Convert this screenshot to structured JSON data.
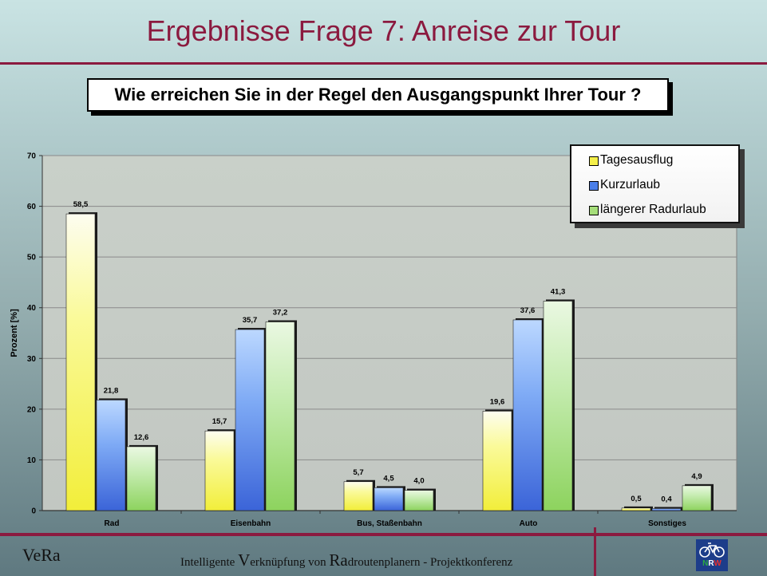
{
  "slide": {
    "title": "Ergebnisse Frage 7: Anreise zur Tour",
    "question": "Wie erreichen Sie in der Regel den Ausgangspunkt Ihrer Tour ?"
  },
  "footer": {
    "left": "VeRa",
    "center_parts": [
      "Intelligente ",
      "V",
      "erknüpfung von ",
      "Ra",
      "droutenplanern - Projektkonferenz"
    ],
    "logo_letters": [
      "N",
      "R",
      "W"
    ]
  },
  "colors": {
    "title": "#8b1a3f",
    "rule": "#8b1a3f",
    "series": [
      "#f5f04a",
      "#4a7ee8",
      "#a6de7a"
    ]
  },
  "chart_data": {
    "type": "bar",
    "title": "",
    "xlabel": "",
    "ylabel": "Prozent [%]",
    "ylim": [
      0,
      70
    ],
    "yticks": [
      0,
      10,
      20,
      30,
      40,
      50,
      60,
      70
    ],
    "grid": true,
    "legend_position": "top-right",
    "categories": [
      "Rad",
      "Eisenbahn",
      "Bus, Staßenbahn",
      "Auto",
      "Sonstiges"
    ],
    "series": [
      {
        "name": "Tagesausflug",
        "values": [
          58.5,
          15.7,
          5.7,
          19.6,
          0.5
        ],
        "labels": [
          "58,5",
          "15,7",
          "5,7",
          "19,6",
          "0,5"
        ]
      },
      {
        "name": "Kurzurlaub",
        "values": [
          21.8,
          35.7,
          4.5,
          37.6,
          0.4
        ],
        "labels": [
          "21,8",
          "35,7",
          "4,5",
          "37,6",
          "0,4"
        ]
      },
      {
        "name": "längerer Radurlaub",
        "values": [
          12.6,
          37.2,
          4.0,
          41.3,
          4.9
        ],
        "labels": [
          "12,6",
          "37,2",
          "4,0",
          "41,3",
          "4,9"
        ]
      }
    ]
  }
}
